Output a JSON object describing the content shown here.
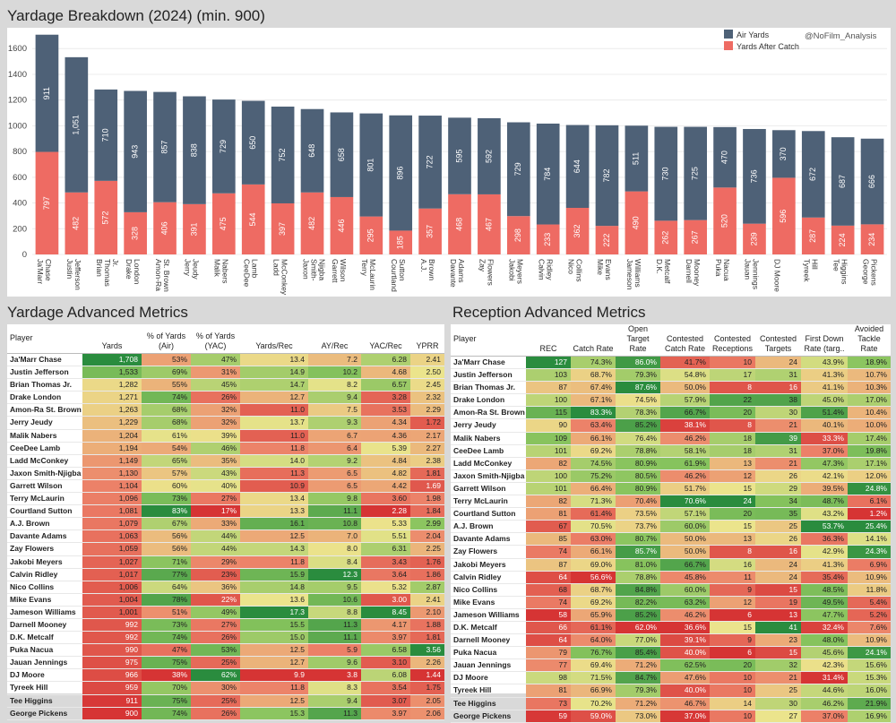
{
  "page": {
    "chart_title": "Yardage Breakdown (2024) (min. 900)",
    "watermark": "@NoFilm_Analysis",
    "left_table_title": "Yardage Advanced Metrics",
    "right_table_title": "Reception Advanced Metrics"
  },
  "colors": {
    "air": "#4e6177",
    "yac": "#ee6b63"
  },
  "chart_data": {
    "type": "bar",
    "stacked": true,
    "title": "Yardage Breakdown (2024) (min. 900)",
    "categories": [
      "Ja'Marr Chase",
      "Justin Jefferson",
      "Brian Thomas Jr.",
      "Drake London",
      "Amon-Ra St. Brown",
      "Jerry Jeudy",
      "Malik Nabers",
      "CeeDee Lamb",
      "Ladd McConkey",
      "Jaxon Smith-Njigba",
      "Garrett Wilson",
      "Terry McLaurin",
      "Courtland Sutton",
      "A.J. Brown",
      "Davante Adams",
      "Zay Flowers",
      "Jakobi Meyers",
      "Calvin Ridley",
      "Nico Collins",
      "Mike Evans",
      "Jameson Williams",
      "D.K. Metcalf",
      "Darnell Mooney",
      "Puka Nacua",
      "Jauan Jennings",
      "DJ Moore",
      "Tyreek Hill",
      "Tee Higgins",
      "George Pickens"
    ],
    "tick_labels": [
      "Ja'Marr\nChase",
      "Justin\nJefferson",
      "Brian\nThomas\nJr.",
      "Drake\nLondon",
      "Amon-Ra\nSt. Brown",
      "Jerry\nJeudy",
      "Malik\nNabers",
      "CeeDee\nLamb",
      "Ladd\nMcConkey",
      "Jaxon\nSmith-\nNjigba",
      "Garrett\nWilson",
      "Terry\nMcLaurin",
      "Courtland\nSutton",
      "A.J.\nBrown",
      "Davante\nAdams",
      "Zay\nFlowers",
      "Jakobi\nMeyers",
      "Calvin\nRidley",
      "Nico\nCollins",
      "Mike\nEvans",
      "Jameson\nWilliams",
      "D.K.\nMetcalf",
      "Darnell\nMooney",
      "Puka\nNacua",
      "Jauan\nJennings",
      "DJ Moore",
      "Tyreek\nHill",
      "Tee\nHiggins",
      "George\nPickens"
    ],
    "series": [
      {
        "name": "Air Yards",
        "values": [
          911,
          1051,
          710,
          943,
          857,
          838,
          729,
          650,
          752,
          648,
          658,
          801,
          896,
          722,
          595,
          592,
          729,
          784,
          644,
          782,
          511,
          730,
          725,
          470,
          736,
          370,
          672,
          687,
          666
        ]
      },
      {
        "name": "Yards After Catch",
        "values": [
          797,
          482,
          572,
          328,
          406,
          391,
          475,
          544,
          397,
          482,
          446,
          295,
          185,
          357,
          468,
          467,
          298,
          233,
          362,
          222,
          490,
          262,
          267,
          520,
          239,
          596,
          287,
          224,
          234
        ]
      }
    ],
    "yticks": [
      0,
      200,
      400,
      600,
      800,
      1000,
      1200,
      1400,
      1600
    ],
    "ylim": [
      0,
      1720
    ],
    "legend_position": "top-right",
    "xlabel": "",
    "ylabel": ""
  },
  "yardage_table": {
    "columns": [
      "Player",
      "Yards",
      "% of Yards (Air)",
      "% of Yards (YAC)",
      "Yards/Rec",
      "AY/Rec",
      "YAC/Rec",
      "YPRR"
    ],
    "rows": [
      [
        "Ja'Marr Chase",
        "1,708",
        "53%",
        "47%",
        "13.4",
        "7.2",
        "6.28",
        "2.41"
      ],
      [
        "Justin Jefferson",
        "1,533",
        "69%",
        "31%",
        "14.9",
        "10.2",
        "4.68",
        "2.50"
      ],
      [
        "Brian Thomas Jr.",
        "1,282",
        "55%",
        "45%",
        "14.7",
        "8.2",
        "6.57",
        "2.45"
      ],
      [
        "Drake London",
        "1,271",
        "74%",
        "26%",
        "12.7",
        "9.4",
        "3.28",
        "2.32"
      ],
      [
        "Amon-Ra St. Brown",
        "1,263",
        "68%",
        "32%",
        "11.0",
        "7.5",
        "3.53",
        "2.29"
      ],
      [
        "Jerry Jeudy",
        "1,229",
        "68%",
        "32%",
        "13.7",
        "9.3",
        "4.34",
        "1.72"
      ],
      [
        "Malik Nabers",
        "1,204",
        "61%",
        "39%",
        "11.0",
        "6.7",
        "4.36",
        "2.17"
      ],
      [
        "CeeDee Lamb",
        "1,194",
        "54%",
        "46%",
        "11.8",
        "6.4",
        "5.39",
        "2.27"
      ],
      [
        "Ladd McConkey",
        "1,149",
        "65%",
        "35%",
        "14.0",
        "9.2",
        "4.84",
        "2.38"
      ],
      [
        "Jaxon Smith-Njigba",
        "1,130",
        "57%",
        "43%",
        "11.3",
        "6.5",
        "4.82",
        "1.81"
      ],
      [
        "Garrett Wilson",
        "1,104",
        "60%",
        "40%",
        "10.9",
        "6.5",
        "4.42",
        "1.69"
      ],
      [
        "Terry McLaurin",
        "1,096",
        "73%",
        "27%",
        "13.4",
        "9.8",
        "3.60",
        "1.98"
      ],
      [
        "Courtland Sutton",
        "1,081",
        "83%",
        "17%",
        "13.3",
        "11.1",
        "2.28",
        "1.84"
      ],
      [
        "A.J. Brown",
        "1,079",
        "67%",
        "33%",
        "16.1",
        "10.8",
        "5.33",
        "2.99"
      ],
      [
        "Davante Adams",
        "1,063",
        "56%",
        "44%",
        "12.5",
        "7.0",
        "5.51",
        "2.04"
      ],
      [
        "Zay Flowers",
        "1,059",
        "56%",
        "44%",
        "14.3",
        "8.0",
        "6.31",
        "2.25"
      ],
      [
        "Jakobi Meyers",
        "1,027",
        "71%",
        "29%",
        "11.8",
        "8.4",
        "3.43",
        "1.76"
      ],
      [
        "Calvin Ridley",
        "1,017",
        "77%",
        "23%",
        "15.9",
        "12.3",
        "3.64",
        "1.86"
      ],
      [
        "Nico Collins",
        "1,006",
        "64%",
        "36%",
        "14.8",
        "9.5",
        "5.32",
        "2.87"
      ],
      [
        "Mike Evans",
        "1,004",
        "78%",
        "22%",
        "13.6",
        "10.6",
        "3.00",
        "2.41"
      ],
      [
        "Jameson Williams",
        "1,001",
        "51%",
        "49%",
        "17.3",
        "8.8",
        "8.45",
        "2.10"
      ],
      [
        "Darnell Mooney",
        "992",
        "73%",
        "27%",
        "15.5",
        "11.3",
        "4.17",
        "1.88"
      ],
      [
        "D.K. Metcalf",
        "992",
        "74%",
        "26%",
        "15.0",
        "11.1",
        "3.97",
        "1.81"
      ],
      [
        "Puka Nacua",
        "990",
        "47%",
        "53%",
        "12.5",
        "5.9",
        "6.58",
        "3.56"
      ],
      [
        "Jauan Jennings",
        "975",
        "75%",
        "25%",
        "12.7",
        "9.6",
        "3.10",
        "2.26"
      ],
      [
        "DJ Moore",
        "966",
        "38%",
        "62%",
        "9.9",
        "3.8",
        "6.08",
        "1.44"
      ],
      [
        "Tyreek Hill",
        "959",
        "70%",
        "30%",
        "11.8",
        "8.3",
        "3.54",
        "1.75"
      ],
      [
        "Tee Higgins",
        "911",
        "75%",
        "25%",
        "12.5",
        "9.4",
        "3.07",
        "2.05"
      ],
      [
        "George Pickens",
        "900",
        "74%",
        "26%",
        "15.3",
        "11.3",
        "3.97",
        "2.06"
      ]
    ]
  },
  "reception_table": {
    "columns": [
      "Player",
      "REC",
      "Catch Rate",
      "Open Target Rate",
      "Contested Catch Rate",
      "Contested Receptions",
      "Contested Targets",
      "First Down Rate (targ..",
      "Avoided Tackle Rate"
    ],
    "rows": [
      [
        "Ja'Marr Chase",
        "127",
        "74.3%",
        "86.0%",
        "41.7%",
        "10",
        "24",
        "43.9%",
        "18.9%"
      ],
      [
        "Justin Jefferson",
        "103",
        "68.7%",
        "79.3%",
        "54.8%",
        "17",
        "31",
        "41.3%",
        "10.7%"
      ],
      [
        "Brian Thomas Jr.",
        "87",
        "67.4%",
        "87.6%",
        "50.0%",
        "8",
        "16",
        "41.1%",
        "10.3%"
      ],
      [
        "Drake London",
        "100",
        "67.1%",
        "74.5%",
        "57.9%",
        "22",
        "38",
        "45.0%",
        "17.0%"
      ],
      [
        "Amon-Ra St. Brown",
        "115",
        "83.3%",
        "78.3%",
        "66.7%",
        "20",
        "30",
        "51.4%",
        "10.4%"
      ],
      [
        "Jerry Jeudy",
        "90",
        "63.4%",
        "85.2%",
        "38.1%",
        "8",
        "21",
        "40.1%",
        "10.0%"
      ],
      [
        "Malik Nabers",
        "109",
        "66.1%",
        "76.4%",
        "46.2%",
        "18",
        "39",
        "33.3%",
        "17.4%"
      ],
      [
        "CeeDee Lamb",
        "101",
        "69.2%",
        "78.8%",
        "58.1%",
        "18",
        "31",
        "37.0%",
        "19.8%"
      ],
      [
        "Ladd McConkey",
        "82",
        "74.5%",
        "80.9%",
        "61.9%",
        "13",
        "21",
        "47.3%",
        "17.1%"
      ],
      [
        "Jaxon Smith-Njigba",
        "100",
        "75.2%",
        "80.5%",
        "46.2%",
        "12",
        "26",
        "42.1%",
        "12.0%"
      ],
      [
        "Garrett Wilson",
        "101",
        "66.4%",
        "80.9%",
        "51.7%",
        "15",
        "29",
        "39.5%",
        "24.8%"
      ],
      [
        "Terry McLaurin",
        "82",
        "71.3%",
        "70.4%",
        "70.6%",
        "24",
        "34",
        "48.7%",
        "6.1%"
      ],
      [
        "Courtland Sutton",
        "81",
        "61.4%",
        "73.5%",
        "57.1%",
        "20",
        "35",
        "43.2%",
        "1.2%"
      ],
      [
        "A.J. Brown",
        "67",
        "70.5%",
        "73.7%",
        "60.0%",
        "15",
        "25",
        "53.7%",
        "25.4%"
      ],
      [
        "Davante Adams",
        "85",
        "63.0%",
        "80.7%",
        "50.0%",
        "13",
        "26",
        "36.3%",
        "14.1%"
      ],
      [
        "Zay Flowers",
        "74",
        "66.1%",
        "85.7%",
        "50.0%",
        "8",
        "16",
        "42.9%",
        "24.3%"
      ],
      [
        "Jakobi Meyers",
        "87",
        "69.0%",
        "81.0%",
        "66.7%",
        "16",
        "24",
        "41.3%",
        "6.9%"
      ],
      [
        "Calvin Ridley",
        "64",
        "56.6%",
        "78.8%",
        "45.8%",
        "11",
        "24",
        "35.4%",
        "10.9%"
      ],
      [
        "Nico Collins",
        "68",
        "68.7%",
        "84.8%",
        "60.0%",
        "9",
        "15",
        "48.5%",
        "11.8%"
      ],
      [
        "Mike Evans",
        "74",
        "69.2%",
        "82.2%",
        "63.2%",
        "12",
        "19",
        "49.5%",
        "5.4%"
      ],
      [
        "Jameson Williams",
        "58",
        "65.9%",
        "85.2%",
        "46.2%",
        "6",
        "13",
        "47.7%",
        "5.2%"
      ],
      [
        "D.K. Metcalf",
        "66",
        "61.1%",
        "62.0%",
        "36.6%",
        "15",
        "41",
        "32.4%",
        "7.6%"
      ],
      [
        "Darnell Mooney",
        "64",
        "64.0%",
        "77.0%",
        "39.1%",
        "9",
        "23",
        "48.0%",
        "10.9%"
      ],
      [
        "Puka Nacua",
        "79",
        "76.7%",
        "85.4%",
        "40.0%",
        "6",
        "15",
        "45.6%",
        "24.1%"
      ],
      [
        "Jauan Jennings",
        "77",
        "69.4%",
        "71.2%",
        "62.5%",
        "20",
        "32",
        "42.3%",
        "15.6%"
      ],
      [
        "DJ Moore",
        "98",
        "71.5%",
        "84.7%",
        "47.6%",
        "10",
        "21",
        "31.4%",
        "15.3%"
      ],
      [
        "Tyreek Hill",
        "81",
        "66.9%",
        "79.3%",
        "40.0%",
        "10",
        "25",
        "44.6%",
        "16.0%"
      ],
      [
        "Tee Higgins",
        "73",
        "70.2%",
        "71.2%",
        "46.7%",
        "14",
        "30",
        "46.2%",
        "21.9%"
      ],
      [
        "George Pickens",
        "59",
        "59.0%",
        "73.0%",
        "37.0%",
        "10",
        "27",
        "37.0%",
        "16.9%"
      ]
    ]
  }
}
